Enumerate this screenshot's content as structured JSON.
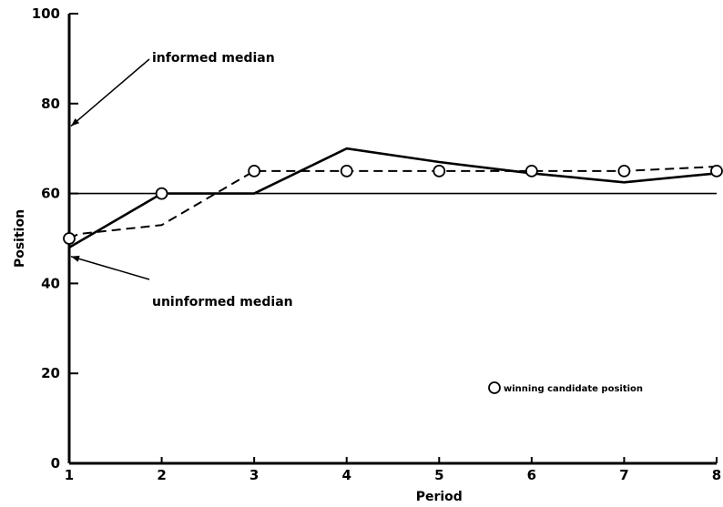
{
  "chart_data": {
    "type": "line",
    "xlabel": "Period",
    "ylabel": "Position",
    "xlim": [
      1,
      8
    ],
    "ylim": [
      0,
      100
    ],
    "x_ticks": [
      1,
      2,
      3,
      4,
      5,
      6,
      7,
      8
    ],
    "y_ticks": [
      0,
      20,
      40,
      60,
      80,
      100
    ],
    "grid": false,
    "series": [
      {
        "style": "solid",
        "x": [
          1,
          1.5,
          2,
          3,
          4,
          5,
          6,
          7,
          8
        ],
        "values": [
          48,
          54,
          60,
          60,
          70,
          67,
          64.5,
          62.5,
          64.5
        ]
      },
      {
        "style": "dashed",
        "x": [
          1,
          1.1,
          2,
          3,
          4,
          5,
          6,
          7,
          8
        ],
        "values": [
          50,
          51,
          53,
          65,
          65,
          65,
          65,
          65,
          66
        ]
      },
      {
        "style": "solid-thin",
        "x": [
          1,
          8
        ],
        "values": [
          60,
          60
        ]
      }
    ],
    "winning_candidate_positions": {
      "x": [
        1,
        2,
        3,
        4,
        5,
        6,
        7,
        8
      ],
      "values": [
        50,
        60,
        65,
        65,
        65,
        65,
        65,
        65
      ]
    },
    "annotations": [
      {
        "text": "informed median",
        "points_to": [
          1,
          75
        ]
      },
      {
        "text": "uninformed median",
        "points_to": [
          1,
          46
        ]
      }
    ],
    "legend": {
      "text": "winning candidate position",
      "marker": "open-circle",
      "placement": "lower-right"
    }
  }
}
